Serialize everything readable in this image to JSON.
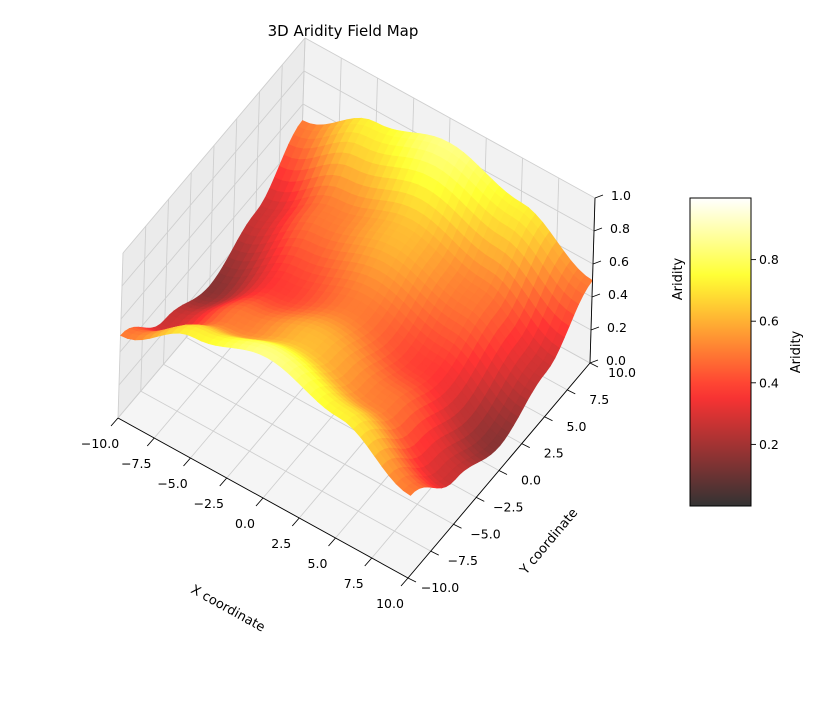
{
  "chart_data": {
    "type": "surface3d",
    "title": "3D Aridity Field Map",
    "xlabel": "X coordinate",
    "ylabel": "Y coordinate",
    "zlabel": "Aridity",
    "colorbar_label": "Aridity",
    "colormap": "hot",
    "alpha": 0.8,
    "grid": true,
    "x_range": [
      -10,
      10
    ],
    "y_range": [
      -10,
      10
    ],
    "z_range": [
      0,
      1
    ],
    "x_ticks": [
      -10.0,
      -7.5,
      -5.0,
      -2.5,
      0.0,
      2.5,
      5.0,
      7.5,
      10.0
    ],
    "x_tick_labels": [
      "−10.0",
      "−7.5",
      "−5.0",
      "−2.5",
      "0.0",
      "2.5",
      "5.0",
      "7.5",
      "10.0"
    ],
    "y_ticks": [
      -10.0,
      -7.5,
      -5.0,
      -2.5,
      0.0,
      2.5,
      5.0,
      7.5,
      10.0
    ],
    "y_tick_labels": [
      "−10.0",
      "−7.5",
      "−5.0",
      "−2.5",
      "0.0",
      "2.5",
      "5.0",
      "7.5",
      "10.0"
    ],
    "z_ticks": [
      0.0,
      0.2,
      0.4,
      0.6,
      0.8,
      1.0
    ],
    "z_tick_labels": [
      "0.0",
      "0.2",
      "0.4",
      "0.6",
      "0.8",
      "1.0"
    ],
    "colorbar_ticks": [
      0.2,
      0.4,
      0.6,
      0.8
    ],
    "colorbar_tick_labels": [
      "0.2",
      "0.4",
      "0.6",
      "0.8"
    ],
    "colorbar_range": [
      0.0,
      1.0
    ],
    "surface_samples": {
      "x": [
        -10,
        -5,
        0,
        5,
        10
      ],
      "y": [
        -10,
        -5,
        0,
        5,
        10
      ],
      "z": [
        [
          0.5,
          0.73,
          0.85,
          0.73,
          0.5
        ],
        [
          0.27,
          0.5,
          0.62,
          0.5,
          0.27
        ],
        [
          0.15,
          0.38,
          0.5,
          0.38,
          0.15
        ],
        [
          0.27,
          0.5,
          0.62,
          0.5,
          0.27
        ],
        [
          0.5,
          0.73,
          0.85,
          0.73,
          0.5
        ]
      ]
    }
  }
}
